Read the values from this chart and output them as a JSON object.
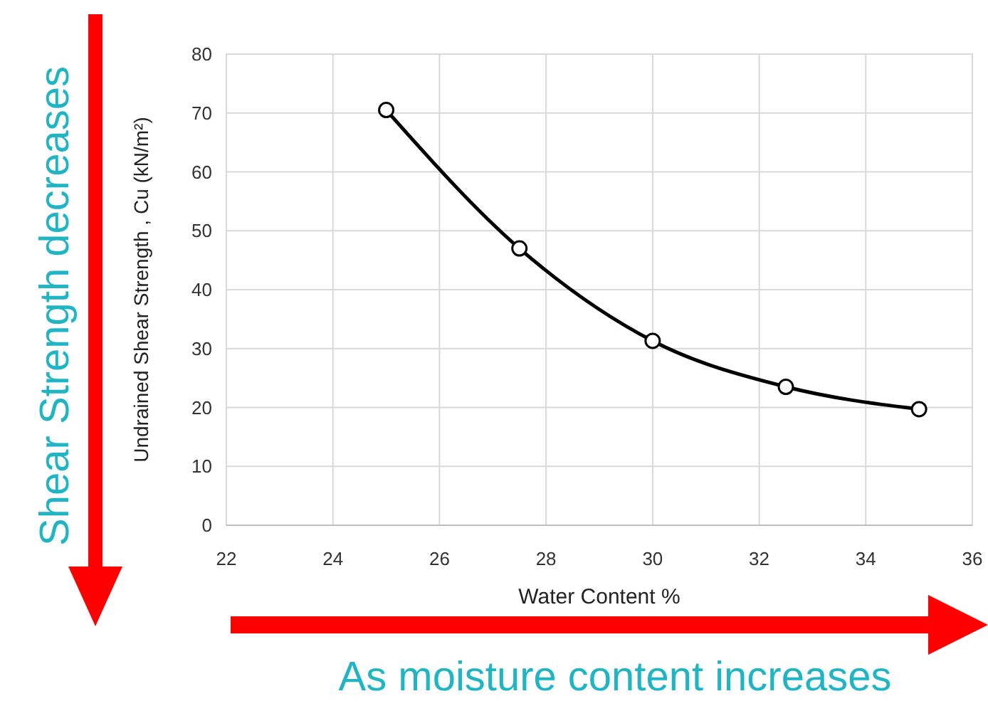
{
  "chart_data": {
    "type": "line",
    "xlabel": "Water Content %",
    "ylabel": "Undrained Shear Strength , Cu (kN/m²)",
    "x": [
      25,
      27.5,
      30,
      32.5,
      35
    ],
    "series": [
      {
        "color": "#000000",
        "values": [
          70.5,
          47,
          31.3,
          23.5,
          19.7
        ]
      }
    ],
    "xlim": [
      22,
      36
    ],
    "xticks": [
      22,
      24,
      26,
      28,
      30,
      32,
      34,
      36
    ],
    "ylim": [
      0,
      80
    ],
    "yticks": [
      0,
      10,
      20,
      30,
      40,
      50,
      60,
      70,
      80
    ],
    "grid": true,
    "marker": "circle",
    "line_style": "solid",
    "annotations": [
      "Shear Strength decreases",
      "As moisture content increases"
    ]
  }
}
